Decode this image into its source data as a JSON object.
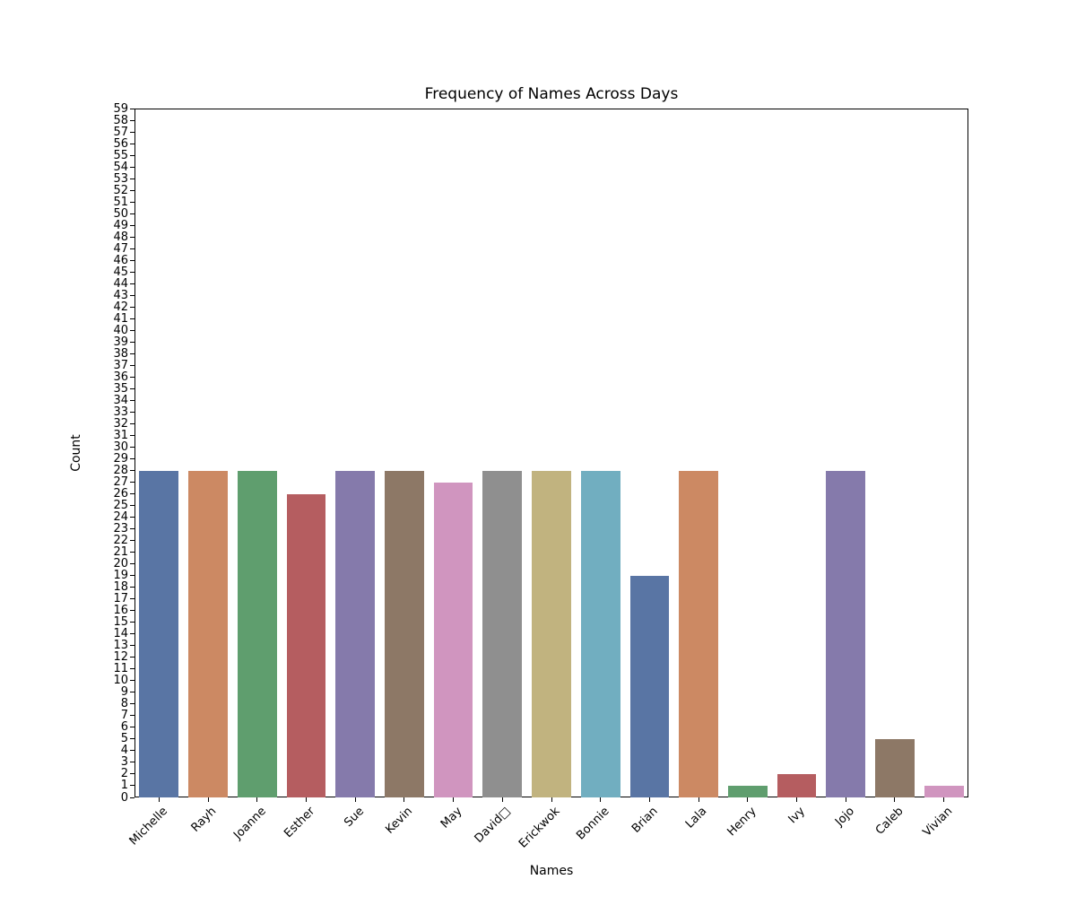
{
  "chart_data": {
    "type": "bar",
    "title": "Frequency of Names Across Days",
    "xlabel": "Names",
    "ylabel": "Count",
    "ylim": [
      0,
      59
    ],
    "ytick_step": 1,
    "grid": false,
    "legend": "none",
    "categories": [
      "Michelle",
      "Rayh",
      "Joanne",
      "Esther",
      "Sue",
      "Kevin",
      "May",
      "David□",
      "Erickwok",
      "Bonnie",
      "Brian",
      "Lala",
      "Henry",
      "Ivy",
      "Jojo",
      "Caleb",
      "Vivian"
    ],
    "values": [
      28,
      28,
      28,
      26,
      28,
      28,
      27,
      28,
      28,
      28,
      19,
      28,
      1,
      2,
      28,
      5,
      1
    ],
    "bar_colors": [
      "#5975a4",
      "#cc8963",
      "#5f9e6e",
      "#b55d60",
      "#857aab",
      "#8d7866",
      "#d095bf",
      "#8f8f8f",
      "#c1b37f",
      "#71aec0",
      "#5975a4",
      "#cc8963",
      "#5f9e6e",
      "#b55d60",
      "#857aab",
      "#8d7866",
      "#d095bf"
    ],
    "axis_color": "#000000",
    "background_color": "#ffffff"
  }
}
